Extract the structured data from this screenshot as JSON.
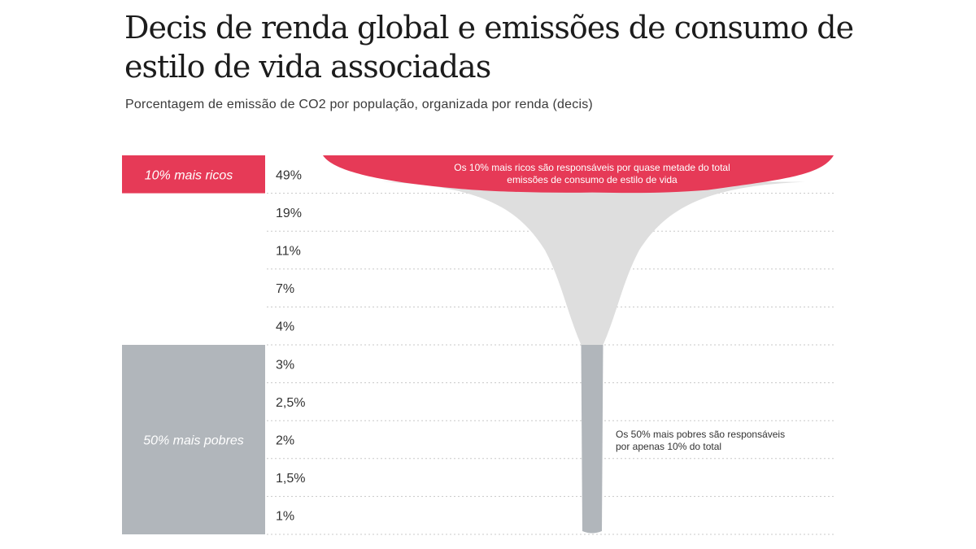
{
  "title": "Decis de renda global e emissões de consumo de estilo de vida associadas",
  "subtitle": "Porcentagem de emissão de CO2 por população, organizada por renda (decis)",
  "chart_data": {
    "type": "area",
    "categories": [
      "49%",
      "19%",
      "11%",
      "7%",
      "4%",
      "3%",
      "2,5%",
      "2%",
      "1,5%",
      "1%"
    ],
    "values": [
      49,
      19,
      11,
      7,
      4,
      3,
      2.5,
      2,
      1.5,
      1
    ],
    "groups": [
      {
        "label": "10% mais ricos",
        "color": "#e63a57"
      },
      {
        "label": "50% mais pobres",
        "color": "#b1b6bb"
      }
    ],
    "annotations": [
      {
        "lines": [
          "Os 10% mais ricos são responsáveis por quase metade do total",
          "emissões de consumo de estilo de vida"
        ]
      },
      {
        "lines": [
          "Os 50% mais pobres são responsáveis",
          "por apenas 10% do total"
        ]
      }
    ],
    "colors": {
      "rich": "#e63a57",
      "middle": "#dedede",
      "poor": "#b1b6bb",
      "grid": "#c8c8c8"
    }
  }
}
